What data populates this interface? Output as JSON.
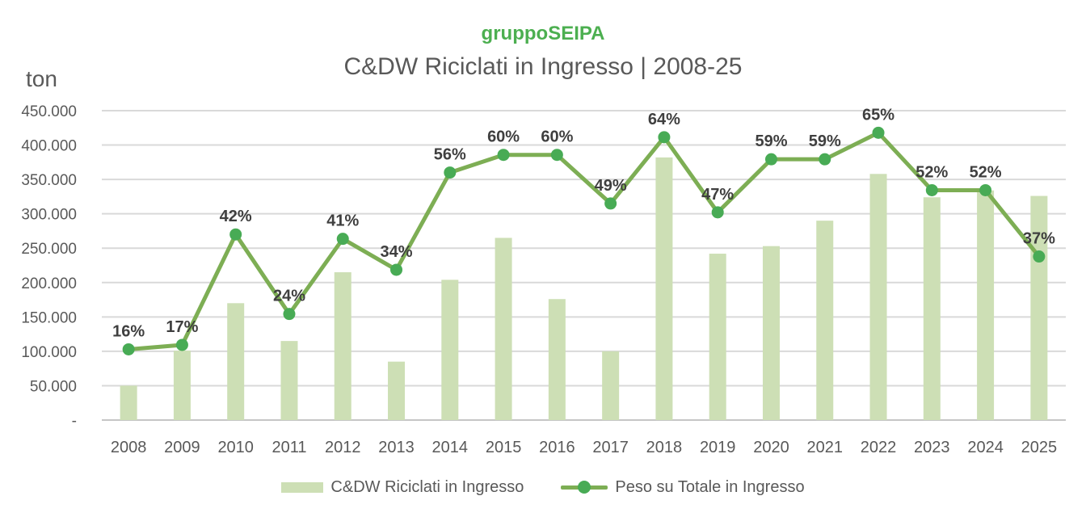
{
  "header": {
    "brand": "gruppoSEIPA",
    "title": "C&DW Riciclati in Ingresso | 2008-25"
  },
  "axes": {
    "y_unit_label": "ton",
    "y_tick_labels": [
      "-",
      "50.000",
      "100.000",
      "150.000",
      "200.000",
      "250.000",
      "300.000",
      "350.000",
      "400.000",
      "450.000"
    ]
  },
  "legend": [
    {
      "label": "C&DW Riciclati in Ingresso",
      "swatch": "bar"
    },
    {
      "label": "Peso su Totale in Ingresso",
      "swatch": "line-marker"
    }
  ],
  "colors": {
    "bar": "#cddfb5",
    "line": "#7dae54",
    "marker": "#48ab55",
    "grid": "#d9d9d9",
    "axis_line": "#c6c6c6",
    "brand_green": "#4caf50",
    "title_gray": "#595959",
    "axis_text": "#595959",
    "data_label": "#3f3f3f"
  },
  "chart_data": {
    "type": "bar",
    "subtype": "combo bar+line",
    "title": "C&DW Riciclati in Ingresso | 2008-25",
    "xlabel": "",
    "ylabel": "ton",
    "categories": [
      "2008",
      "2009",
      "2010",
      "2011",
      "2012",
      "2013",
      "2014",
      "2015",
      "2016",
      "2017",
      "2018",
      "2019",
      "2020",
      "2021",
      "2022",
      "2023",
      "2024",
      "2025"
    ],
    "series": [
      {
        "name": "C&DW Riciclati in Ingresso",
        "type": "bar",
        "axis": "primary_tons",
        "values": [
          50000,
          101000,
          170000,
          115000,
          215000,
          85000,
          204000,
          265000,
          176000,
          100000,
          382000,
          242000,
          253000,
          290000,
          358000,
          324000,
          334000,
          326000
        ]
      },
      {
        "name": "Peso su Totale in Ingresso",
        "type": "line",
        "axis": "secondary_percent",
        "values": [
          16,
          17,
          42,
          24,
          41,
          34,
          56,
          60,
          60,
          49,
          64,
          47,
          59,
          59,
          65,
          52,
          52,
          37
        ],
        "data_labels": [
          "16%",
          "17%",
          "42%",
          "24%",
          "41%",
          "34%",
          "56%",
          "60%",
          "60%",
          "49%",
          "64%",
          "47%",
          "59%",
          "59%",
          "65%",
          "52%",
          "52%",
          "37%"
        ]
      }
    ],
    "y_primary": {
      "min": 0,
      "max": 450000,
      "step": 50000
    },
    "y_secondary": {
      "min": 0,
      "max": 70,
      "visible": false
    },
    "grid": true,
    "legend_position": "bottom"
  }
}
